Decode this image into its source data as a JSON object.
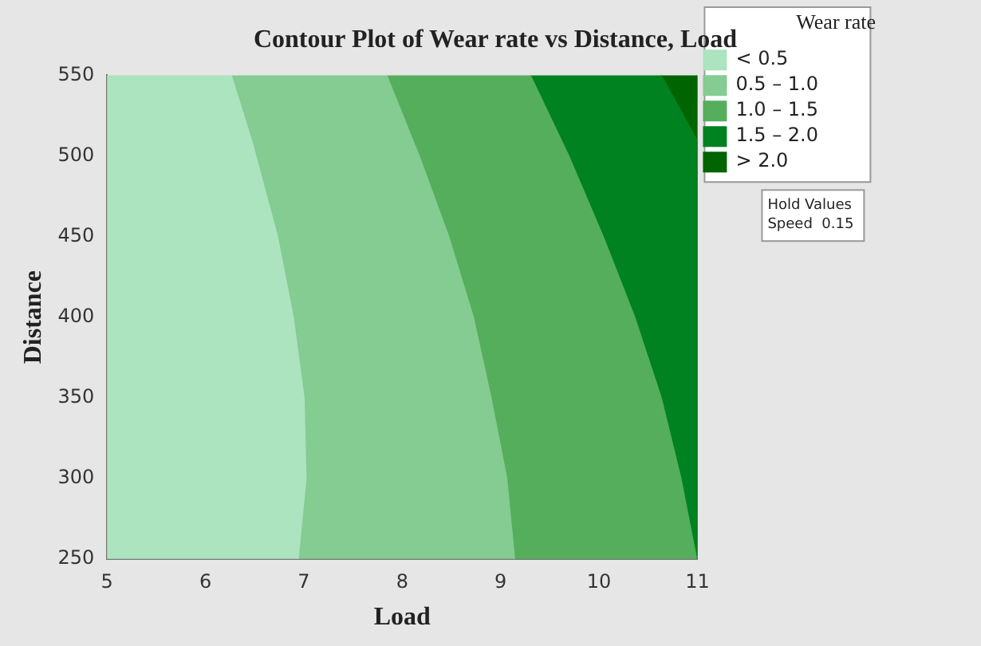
{
  "chart_data": {
    "type": "area",
    "orientation": "horizontal",
    "title": "Contour Plot of Wear rate vs Distance, Load",
    "xlabel": "Load",
    "ylabel": "Distance",
    "legend_title": "Wear rate",
    "legend": "top right",
    "marker": "none",
    "x": [
      250,
      300,
      350,
      400,
      450,
      500,
      509,
      550
    ],
    "series": [
      {
        "name": "< 0.5",
        "color": "#abe4bf",
        "values": [
          6.94,
          7.02,
          7.0,
          6.89,
          6.73,
          6.51,
          6.47,
          6.26
        ]
      },
      {
        "name": "0.5 – 1.0",
        "color": "#84cc91",
        "values": [
          9.14,
          9.06,
          8.9,
          8.72,
          8.47,
          8.17,
          8.11,
          7.84
        ]
      },
      {
        "name": "1.0 – 1.5",
        "color": "#55ae5c",
        "values": [
          10.99,
          10.83,
          10.63,
          10.36,
          10.04,
          9.69,
          9.62,
          9.3
        ]
      },
      {
        "name": "1.5 – 2.0",
        "color": "#008220",
        "values": [
          11,
          11,
          11,
          11,
          11,
          11,
          11,
          10.63
        ]
      },
      {
        "name": "> 2.0",
        "color": "#006400",
        "values": [
          11,
          11,
          11,
          11,
          11,
          11,
          11,
          11
        ]
      }
    ],
    "xlim": [
      5,
      11
    ],
    "xticks": [
      5,
      6,
      7,
      8,
      9,
      10,
      11
    ],
    "ylim": [
      250,
      550
    ],
    "yticks": [
      250,
      300,
      350,
      400,
      450,
      500,
      550
    ],
    "annotations": [
      "Hold Values",
      "Speed  0.15"
    ]
  }
}
